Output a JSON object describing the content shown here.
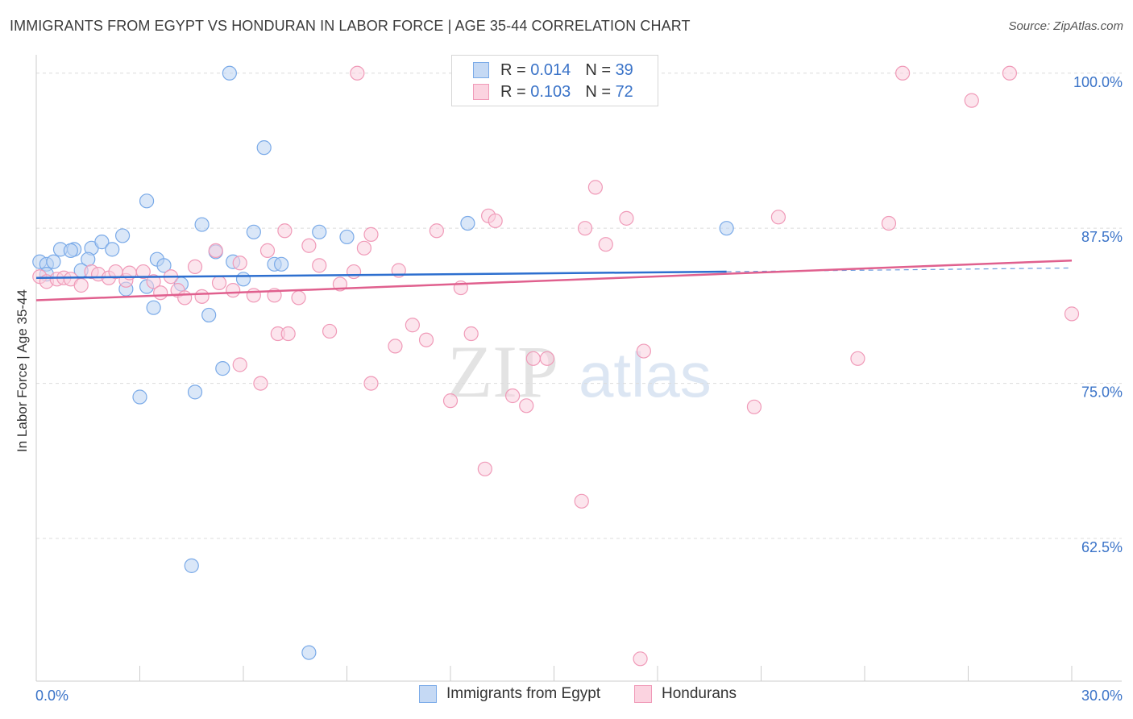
{
  "title": "IMMIGRANTS FROM EGYPT VS HONDURAN IN LABOR FORCE | AGE 35-44 CORRELATION CHART",
  "source": "Source: ZipAtlas.com",
  "watermark": {
    "zip": "ZIP",
    "atlas": "atlas"
  },
  "legend": {
    "r_label": "R =",
    "n_label": "N =",
    "egypt": {
      "r": "0.014",
      "n": "39"
    },
    "honduran": {
      "r": "0.103",
      "n": "72"
    }
  },
  "chart_data": {
    "type": "scatter",
    "title": "IMMIGRANTS FROM EGYPT VS HONDURAN IN LABOR FORCE | AGE 35-44 CORRELATION CHART",
    "ylabel": "In Labor Force | Age 35-44",
    "xlim": [
      0,
      30
    ],
    "ylim": [
      51,
      102
    ],
    "x_tick_labels": [
      "0.0%",
      "30.0%"
    ],
    "y_ticks": [
      62.5,
      75.0,
      87.5,
      100.0
    ],
    "y_tick_labels": [
      "62.5%",
      "75.0%",
      "87.5%",
      "100.0%"
    ],
    "grid": "horizontal dashed",
    "legend_position": "top-center",
    "colors": {
      "egypt": "#7aaae8",
      "egypt_line": "#2d6fcf",
      "honduran": "#f09ab8",
      "honduran_line": "#e0608e"
    },
    "series": [
      {
        "name": "Immigrants from Egypt",
        "key": "egypt",
        "trend": {
          "x0": 0,
          "y0": 83.5,
          "x1": 20.0,
          "y1": 84.0,
          "x_end": 30,
          "y_end": 84.3
        },
        "points": [
          [
            0.1,
            84.8
          ],
          [
            0.3,
            84.6
          ],
          [
            0.5,
            84.8
          ],
          [
            0.3,
            83.8
          ],
          [
            0.7,
            85.8
          ],
          [
            1.1,
            85.8
          ],
          [
            1.0,
            85.7
          ],
          [
            1.6,
            85.9
          ],
          [
            1.9,
            86.4
          ],
          [
            2.2,
            85.8
          ],
          [
            2.5,
            86.9
          ],
          [
            1.5,
            85.0
          ],
          [
            1.3,
            84.1
          ],
          [
            2.6,
            82.6
          ],
          [
            3.2,
            89.7
          ],
          [
            3.5,
            85.0
          ],
          [
            3.7,
            84.5
          ],
          [
            3.2,
            82.8
          ],
          [
            3.4,
            81.1
          ],
          [
            4.2,
            83.0
          ],
          [
            4.8,
            87.8
          ],
          [
            5.2,
            85.6
          ],
          [
            5.7,
            84.8
          ],
          [
            6.3,
            87.2
          ],
          [
            6.6,
            94.0
          ],
          [
            6.9,
            84.6
          ],
          [
            7.1,
            84.6
          ],
          [
            5.4,
            76.2
          ],
          [
            6.0,
            83.4
          ],
          [
            5.0,
            80.5
          ],
          [
            4.6,
            74.3
          ],
          [
            4.5,
            60.3
          ],
          [
            3.0,
            73.9
          ],
          [
            5.6,
            100.0
          ],
          [
            8.2,
            87.2
          ],
          [
            9.0,
            86.8
          ],
          [
            12.5,
            87.9
          ],
          [
            20.0,
            87.5
          ],
          [
            7.9,
            53.3
          ]
        ]
      },
      {
        "name": "Hondurans",
        "key": "honduran",
        "trend": {
          "x0": 0,
          "y0": 81.7,
          "x1": 30,
          "y1": 84.9
        },
        "points": [
          [
            0.1,
            83.6
          ],
          [
            0.3,
            83.2
          ],
          [
            0.6,
            83.4
          ],
          [
            0.8,
            83.5
          ],
          [
            1.0,
            83.4
          ],
          [
            1.3,
            82.9
          ],
          [
            1.6,
            84.0
          ],
          [
            1.8,
            83.8
          ],
          [
            2.1,
            83.5
          ],
          [
            2.3,
            84.0
          ],
          [
            2.6,
            83.3
          ],
          [
            3.1,
            84.0
          ],
          [
            3.4,
            83.2
          ],
          [
            3.6,
            82.3
          ],
          [
            3.9,
            83.6
          ],
          [
            4.1,
            82.5
          ],
          [
            4.3,
            81.9
          ],
          [
            4.6,
            84.4
          ],
          [
            4.8,
            82.0
          ],
          [
            5.2,
            85.7
          ],
          [
            5.3,
            83.1
          ],
          [
            5.7,
            82.5
          ],
          [
            5.9,
            84.7
          ],
          [
            6.3,
            82.1
          ],
          [
            6.7,
            85.7
          ],
          [
            7.2,
            87.3
          ],
          [
            7.6,
            81.9
          ],
          [
            7.9,
            86.1
          ],
          [
            8.2,
            84.5
          ],
          [
            8.8,
            83.0
          ],
          [
            9.2,
            84.0
          ],
          [
            9.5,
            85.9
          ],
          [
            9.7,
            87.0
          ],
          [
            10.5,
            84.1
          ],
          [
            10.9,
            79.7
          ],
          [
            11.3,
            78.5
          ],
          [
            11.6,
            87.3
          ],
          [
            12.0,
            73.6
          ],
          [
            12.3,
            82.7
          ],
          [
            12.6,
            79.0
          ],
          [
            13.1,
            88.5
          ],
          [
            13.3,
            88.1
          ],
          [
            13.8,
            74.0
          ],
          [
            14.2,
            73.2
          ],
          [
            14.4,
            77.0
          ],
          [
            14.8,
            77.0
          ],
          [
            7.0,
            79.0
          ],
          [
            7.3,
            79.0
          ],
          [
            8.5,
            79.2
          ],
          [
            9.3,
            100.0
          ],
          [
            9.7,
            75.0
          ],
          [
            10.4,
            78.0
          ],
          [
            5.9,
            76.5
          ],
          [
            6.5,
            75.0
          ],
          [
            13.0,
            68.1
          ],
          [
            15.8,
            65.5
          ],
          [
            15.9,
            87.5
          ],
          [
            16.2,
            90.8
          ],
          [
            16.5,
            86.2
          ],
          [
            17.1,
            88.3
          ],
          [
            17.6,
            77.6
          ],
          [
            17.5,
            52.8
          ],
          [
            20.8,
            73.1
          ],
          [
            21.5,
            88.4
          ],
          [
            23.8,
            77.0
          ],
          [
            24.7,
            87.9
          ],
          [
            25.1,
            100.0
          ],
          [
            27.1,
            97.8
          ],
          [
            28.2,
            100.0
          ],
          [
            30.0,
            80.6
          ],
          [
            2.7,
            83.9
          ],
          [
            6.9,
            82.1
          ]
        ]
      }
    ]
  },
  "bottom_legend": {
    "egypt": "Immigrants from Egypt",
    "honduran": "Hondurans"
  }
}
